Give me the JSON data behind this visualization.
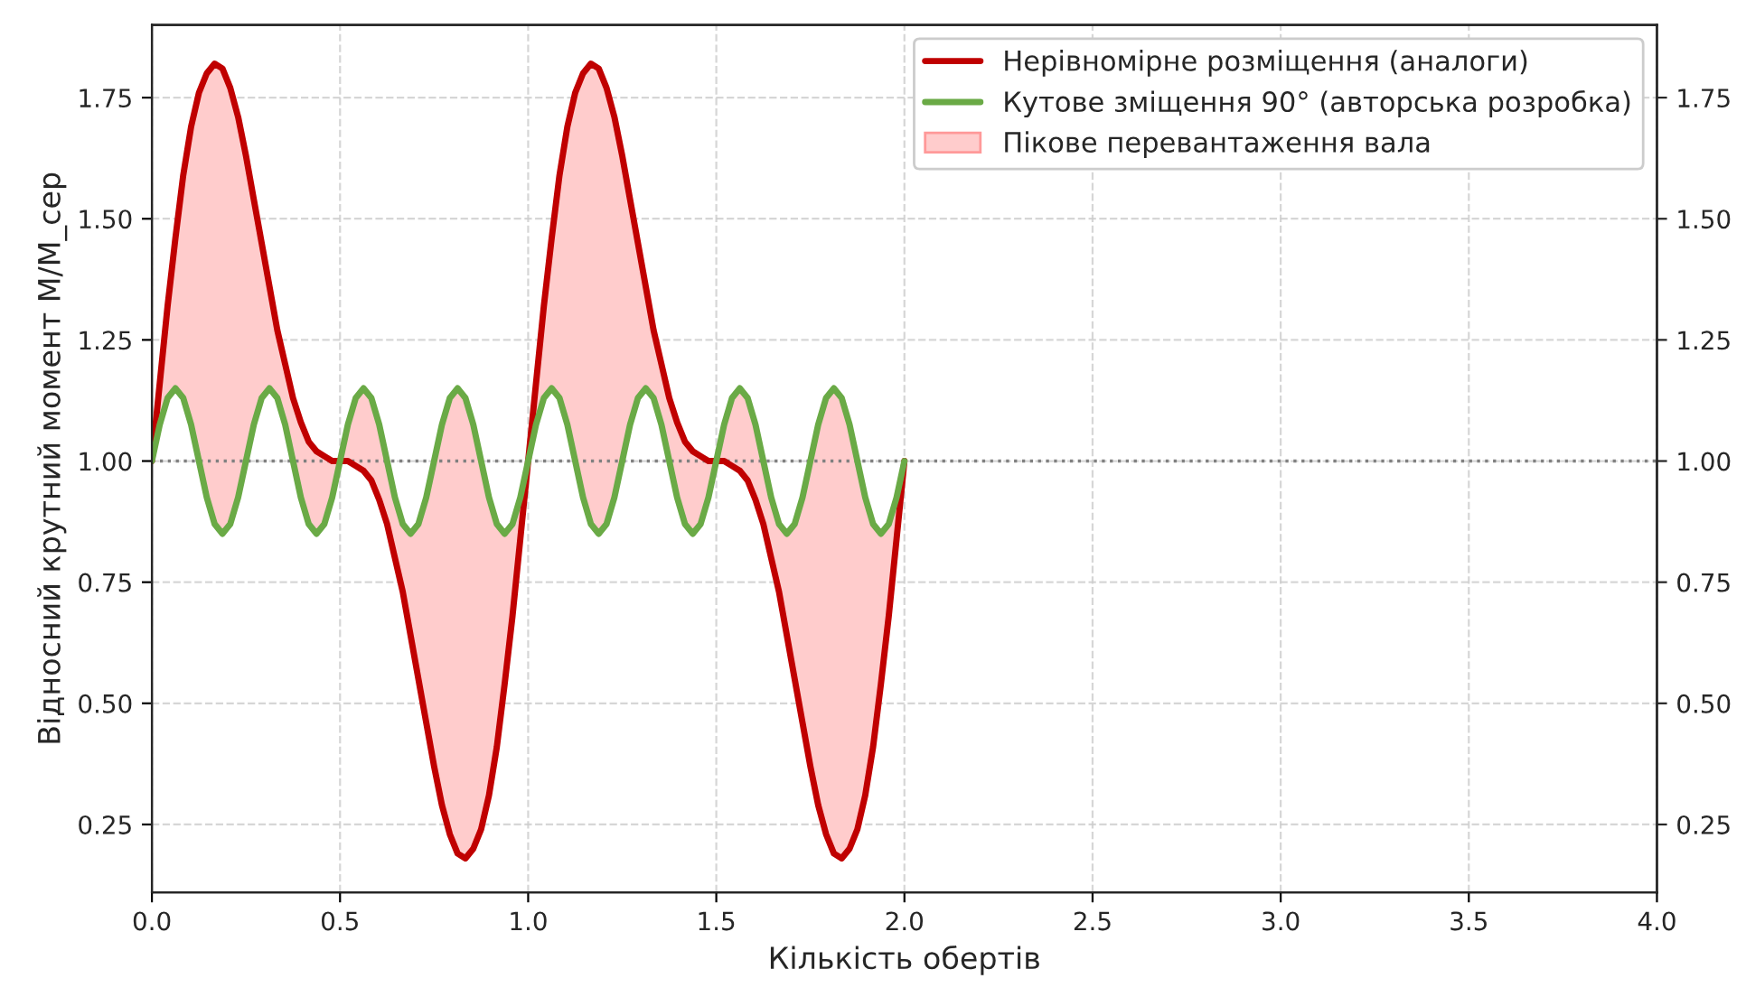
{
  "chart_data": {
    "type": "line",
    "xlabel": "Кількість обертів",
    "ylabel": "Відносний крутний момент M/M_сер",
    "annotations": [
      "Пікове перевантаження вала"
    ],
    "x": [
      0,
      0.0208,
      0.0417,
      0.0625,
      0.0833,
      0.1042,
      0.125,
      0.1458,
      0.1667,
      0.1875,
      0.2083,
      0.2292,
      0.25,
      0.2708,
      0.2917,
      0.3125,
      0.3333,
      0.3542,
      0.375,
      0.3958,
      0.4167,
      0.4375,
      0.4583,
      0.4792,
      0.5,
      0.5208,
      0.5417,
      0.5625,
      0.5833,
      0.6042,
      0.625,
      0.6458,
      0.6667,
      0.6875,
      0.7083,
      0.7292,
      0.75,
      0.7708,
      0.7917,
      0.8125,
      0.8333,
      0.8542,
      0.875,
      0.8958,
      0.9167,
      0.9375,
      0.9583,
      0.9792,
      1,
      1.0208,
      1.0417,
      1.0625,
      1.0833,
      1.1042,
      1.125,
      1.1458,
      1.1667,
      1.1875,
      1.2083,
      1.2292,
      1.25,
      1.2708,
      1.2917,
      1.3125,
      1.3333,
      1.3542,
      1.375,
      1.3958,
      1.4167,
      1.4375,
      1.4583,
      1.4792,
      1.5,
      1.5208,
      1.5417,
      1.5625,
      1.5833,
      1.6042,
      1.625,
      1.6458,
      1.6667,
      1.6875,
      1.7083,
      1.7292,
      1.75,
      1.7708,
      1.7917,
      1.8125,
      1.8333,
      1.8542,
      1.875,
      1.8958,
      1.9167,
      1.9375,
      1.9583,
      1.9792,
      2
    ],
    "series": [
      {
        "name": "Нерівномірне розміщення (аналоги)",
        "color": "#c00000",
        "values": [
          1.0,
          1.16,
          1.32,
          1.46,
          1.59,
          1.69,
          1.76,
          1.8,
          1.82,
          1.81,
          1.77,
          1.71,
          1.63,
          1.54,
          1.45,
          1.36,
          1.27,
          1.2,
          1.13,
          1.08,
          1.04,
          1.02,
          1.01,
          1.0,
          1.0,
          1.0,
          0.99,
          0.98,
          0.96,
          0.92,
          0.87,
          0.8,
          0.73,
          0.64,
          0.55,
          0.46,
          0.37,
          0.29,
          0.23,
          0.19,
          0.18,
          0.2,
          0.24,
          0.31,
          0.41,
          0.54,
          0.68,
          0.84,
          1.0,
          1.16,
          1.32,
          1.46,
          1.59,
          1.69,
          1.76,
          1.8,
          1.82,
          1.81,
          1.77,
          1.71,
          1.63,
          1.54,
          1.45,
          1.36,
          1.27,
          1.2,
          1.13,
          1.08,
          1.04,
          1.02,
          1.01,
          1.0,
          1.0,
          1.0,
          0.99,
          0.98,
          0.96,
          0.92,
          0.87,
          0.8,
          0.73,
          0.64,
          0.55,
          0.46,
          0.37,
          0.29,
          0.23,
          0.19,
          0.18,
          0.2,
          0.24,
          0.31,
          0.41,
          0.54,
          0.68,
          0.84,
          1.0
        ],
        "upper": [
          1.0,
          1.16,
          1.32,
          1.46,
          1.59,
          1.69,
          1.76,
          1.8,
          1.82,
          1.81,
          1.77,
          1.71,
          1.63,
          1.54,
          1.45,
          1.36,
          1.27,
          1.2,
          1.13,
          1.08,
          1.04,
          1.02,
          1.01,
          1.0,
          1.0,
          1.0,
          0.99,
          0.98,
          0.96,
          0.92,
          0.87,
          0.8,
          0.73,
          0.64,
          0.55,
          0.46,
          0.37,
          0.29,
          0.23,
          0.19,
          0.18,
          0.2,
          0.24,
          0.31,
          0.41,
          0.54,
          0.68,
          0.84,
          1.0,
          1.16,
          1.32,
          1.46,
          1.59,
          1.69,
          1.76,
          1.8,
          1.82,
          1.81,
          1.77,
          1.71,
          1.63,
          1.54,
          1.45,
          1.36,
          1.27,
          1.2,
          1.13,
          1.08,
          1.04,
          1.02,
          1.01,
          1.0,
          1.0,
          1.0,
          0.99,
          0.98,
          0.96,
          0.92,
          0.87,
          0.8,
          0.73,
          0.64,
          0.55,
          0.46,
          0.37,
          0.29,
          0.23,
          0.19,
          0.18,
          0.2,
          0.24,
          0.31,
          0.41,
          0.54,
          0.68,
          0.84,
          1.0
        ],
        "lower": [
          1,
          1.075,
          1.13,
          1.15,
          1.13,
          1.075,
          1,
          0.925,
          0.87,
          0.85,
          0.87,
          0.925,
          1,
          1.075,
          1.13,
          1.15,
          1.13,
          1.075,
          1,
          0.925,
          0.87,
          0.85,
          0.87,
          0.925,
          1,
          1.075,
          1.13,
          1.15,
          1.13,
          1.075,
          1,
          0.925,
          0.87,
          0.85,
          0.87,
          0.925,
          1,
          1.075,
          1.13,
          1.15,
          1.13,
          1.075,
          1,
          0.925,
          0.87,
          0.85,
          0.87,
          0.925,
          1,
          1.075,
          1.13,
          1.15,
          1.13,
          1.075,
          1,
          0.925,
          0.87,
          0.85,
          0.87,
          0.925,
          1,
          1.075,
          1.13,
          1.15,
          1.13,
          1.075,
          1,
          0.925,
          0.87,
          0.85,
          0.87,
          0.925,
          1,
          1.075,
          1.13,
          1.15,
          1.13,
          1.075,
          1,
          0.925,
          0.87,
          0.85,
          0.87,
          0.925,
          1,
          1.075,
          1.13,
          1.15,
          1.13,
          1.075,
          1,
          0.925,
          0.87,
          0.85,
          0.87,
          0.925,
          1
        ]
      },
      {
        "name": "Кутове зміщення 90° (авторська розробка)",
        "color": "#6aaa46",
        "values": [
          1,
          1.075,
          1.13,
          1.15,
          1.13,
          1.075,
          1,
          0.925,
          0.87,
          0.85,
          0.87,
          0.925,
          1,
          1.075,
          1.13,
          1.15,
          1.13,
          1.075,
          1,
          0.925,
          0.87,
          0.85,
          0.87,
          0.925,
          1,
          1.075,
          1.13,
          1.15,
          1.13,
          1.075,
          1,
          0.925,
          0.87,
          0.85,
          0.87,
          0.925,
          1,
          1.075,
          1.13,
          1.15,
          1.13,
          1.075,
          1,
          0.925,
          0.87,
          0.85,
          0.87,
          0.925,
          1,
          1.075,
          1.13,
          1.15,
          1.13,
          1.075,
          1,
          0.925,
          0.87,
          0.85,
          0.87,
          0.925,
          1,
          1.075,
          1.13,
          1.15,
          1.13,
          1.075,
          1,
          0.925,
          0.87,
          0.85,
          0.87,
          0.925,
          1,
          1.075,
          1.13,
          1.15,
          1.13,
          1.075,
          1,
          0.925,
          0.87,
          0.85,
          0.87,
          0.925,
          1,
          1.075,
          1.13,
          1.15,
          1.13,
          1.075,
          1,
          0.925,
          0.87,
          0.85,
          0.87,
          0.925,
          1
        ]
      }
    ],
    "ref_lines": [
      {
        "axis": "y",
        "value": 1.0,
        "color": "#808080",
        "line_style": "dotted"
      }
    ],
    "xlim": [
      0,
      4
    ],
    "xticks": [
      {
        "value": 0,
        "label": "0.0"
      },
      {
        "value": 0.5,
        "label": "0.5"
      },
      {
        "value": 1,
        "label": "1.0"
      },
      {
        "value": 1.5,
        "label": "1.5"
      },
      {
        "value": 2,
        "label": "2.0"
      },
      {
        "value": 2.5,
        "label": "2.5"
      },
      {
        "value": 3,
        "label": "3.0"
      },
      {
        "value": 3.5,
        "label": "3.5"
      },
      {
        "value": 4,
        "label": "4.0"
      }
    ],
    "ylim": [
      0.11,
      1.9
    ],
    "yticks": [
      0.25,
      {
        "value": 0.5,
        "label": "0.50"
      },
      0.75,
      {
        "value": 1,
        "label": "1.00"
      },
      1.25,
      {
        "value": 1.5,
        "label": "1.50"
      },
      1.75
    ],
    "y2lim": [
      0.11,
      1.9
    ],
    "y2ticks": [
      0.25,
      {
        "value": 0.5,
        "label": "0.50"
      },
      0.75,
      {
        "value": 1,
        "label": "1.00"
      },
      1.25,
      {
        "value": 1.5,
        "label": "1.50"
      },
      1.75
    ],
    "grid": true,
    "legend": "top right",
    "line_style": "solid",
    "marker": "none"
  }
}
